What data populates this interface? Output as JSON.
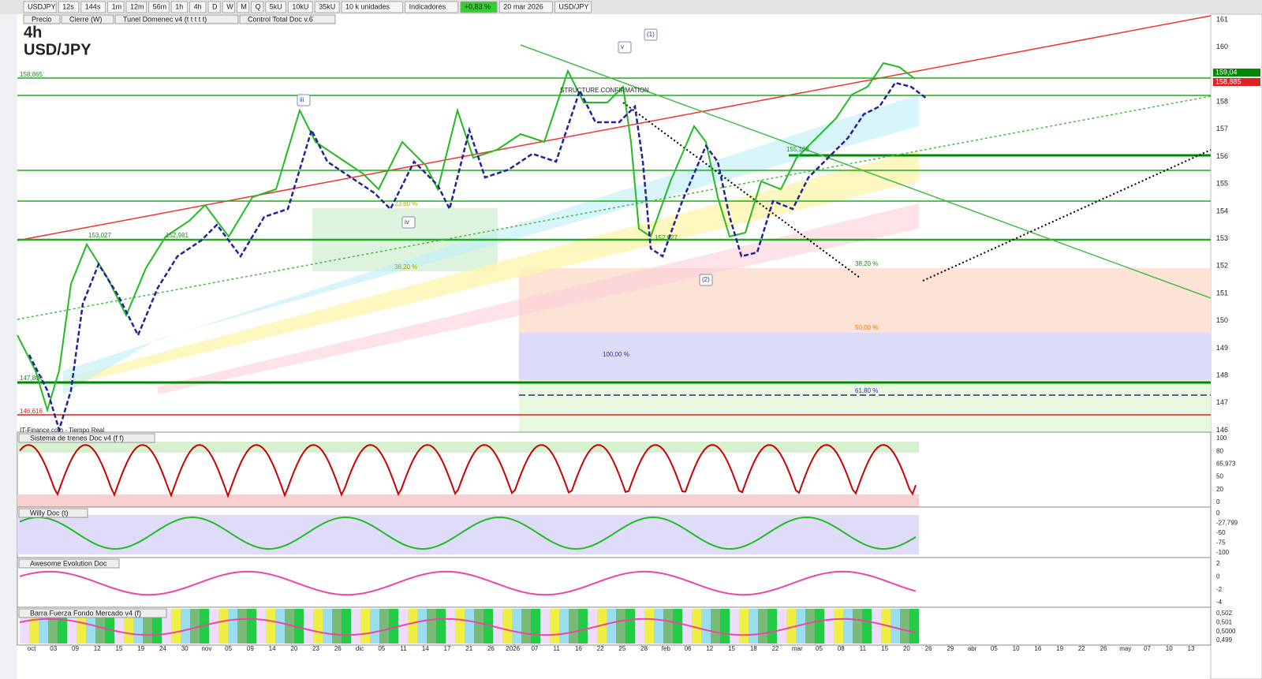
{
  "toolbar": {
    "items": [
      "USDJPY",
      "12s",
      "144s",
      "1m",
      "12m",
      "56m",
      "1h",
      "4h",
      "D",
      "W",
      "M",
      "Q",
      "5kU",
      "10kU",
      "35kU",
      "10 k unidades",
      "Indicadores",
      "+0,83 %",
      "20 mar 2026",
      "USD/JPY"
    ]
  },
  "legend": {
    "items": [
      "Precio",
      "Cierre (W)",
      "Tunel Domenec v4 (t t t t t)",
      "Control Total Doc v.6"
    ]
  },
  "chart": {
    "timeframe": "4h",
    "symbol": "USD/JPY",
    "source": "IT-Finance.com - Tiempo Real",
    "price_labels": [
      "161",
      "160",
      "159",
      "158",
      "157",
      "156",
      "155",
      "154",
      "153",
      "152",
      "151",
      "150",
      "149",
      "148",
      "147",
      "146"
    ],
    "price_tags": [
      "159,04",
      "158,885"
    ],
    "annotations": [
      "158,865",
      "153,027",
      "152,981",
      "23,60 %",
      "38,20 %",
      "iv",
      "iii",
      "v",
      "(1)",
      "(2)",
      "STRUCTURE CONFIRMATION",
      "152,927",
      "155,108",
      "38,20 %",
      "50,00 %",
      "100,00 %",
      "61,80 %",
      "147,800",
      "146,616"
    ],
    "dates": [
      "oct",
      "03",
      "09",
      "12",
      "15",
      "19",
      "24",
      "30",
      "nov",
      "05",
      "09",
      "14",
      "20",
      "23",
      "26",
      "dic",
      "05",
      "11",
      "14",
      "17",
      "21",
      "26",
      "2026",
      "07",
      "11",
      "16",
      "22",
      "25",
      "28",
      "feb",
      "06",
      "12",
      "15",
      "18",
      "22",
      "mar",
      "05",
      "08",
      "11",
      "15",
      "20",
      "26",
      "29",
      "abr",
      "05",
      "10",
      "16",
      "19",
      "22",
      "26",
      "may",
      "07",
      "10",
      "13"
    ]
  },
  "panels": [
    {
      "title": "Sistema de trenes Doc v4 (f f)",
      "labels": [
        "100",
        "80",
        "65,973",
        "50",
        "20",
        "0"
      ]
    },
    {
      "title": "Willy Doc (t)",
      "labels": [
        "0",
        "-27,799",
        "-50",
        "-75",
        "-100"
      ]
    },
    {
      "title": "Awesome Evolution Doc",
      "labels": [
        "2",
        "0",
        "-2",
        "-4"
      ]
    },
    {
      "title": "Barra Fuerza Fondo Mercado v4 (f)",
      "labels": [
        "0,502",
        "0,501",
        "0,5000",
        "0,499"
      ]
    }
  ]
}
